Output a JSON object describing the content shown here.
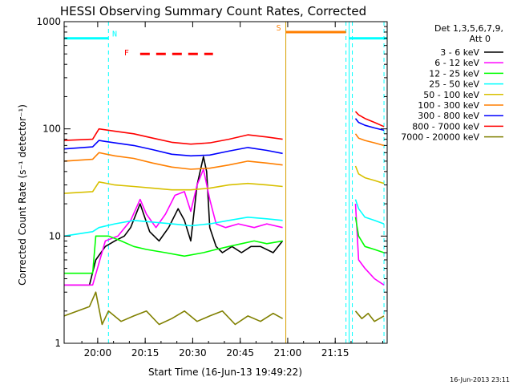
{
  "chart_data": {
    "type": "line",
    "title": "HESSI Observing Summary Count Rates, Corrected",
    "xlabel": "Start Time (16-Jun-13 19:49:22)",
    "ylabel": "Corrected Count Rate (s⁻¹ detector⁻¹)",
    "yscale": "log",
    "ylim": [
      1,
      1000
    ],
    "xlim_minutes_after_start": [
      0,
      102
    ],
    "x_ticks": [
      {
        "label": "20:00",
        "minute": 10.6
      },
      {
        "label": "20:15",
        "minute": 25.6
      },
      {
        "label": "20:30",
        "minute": 40.6
      },
      {
        "label": "20:45",
        "minute": 55.6
      },
      {
        "label": "21:00",
        "minute": 70.6
      },
      {
        "label": "21:15",
        "minute": 85.6
      }
    ],
    "y_ticks": [
      {
        "label": "1",
        "value": 1
      },
      {
        "label": "10",
        "value": 10
      },
      {
        "label": "100",
        "value": 100
      },
      {
        "label": "1000",
        "value": 1000
      }
    ],
    "legend_header": [
      "Det 1,3,5,6,7,9,",
      "Att 0"
    ],
    "legend_placement": "right",
    "series": [
      {
        "name": "3 - 6 keV",
        "color": "#000000",
        "segments": [
          {
            "x": [
              0,
              8,
              10,
              13,
              16,
              19,
              21,
              24,
              27,
              30,
              33,
              36,
              38,
              40,
              42,
              44,
              45,
              46,
              48,
              50,
              53,
              56,
              59,
              62,
              66,
              69
            ],
            "y": [
              3.5,
              3.5,
              6,
              8,
              9,
              10,
              12,
              20,
              11,
              9,
              12,
              18,
              14,
              9,
              30,
              55,
              40,
              12,
              8,
              7,
              8,
              7,
              8,
              8,
              7,
              9
            ]
          }
        ]
      },
      {
        "name": "6 - 12 keV",
        "color": "#ff00ff",
        "segments": [
          {
            "x": [
              0,
              9,
              13,
              17,
              21,
              24,
              26,
              29,
              32,
              35,
              38,
              40,
              42,
              44,
              46,
              48,
              51,
              55,
              60,
              64,
              69
            ],
            "y": [
              3.5,
              3.5,
              9,
              10,
              14,
              22,
              16,
              12,
              16,
              24,
              26,
              17,
              30,
              42,
              22,
              13,
              12,
              13,
              12,
              13,
              12
            ]
          },
          {
            "x": [
              92,
              93,
              95,
              98,
              101
            ],
            "y": [
              20,
              6,
              5,
              4,
              3.5
            ]
          }
        ]
      },
      {
        "name": "12 - 25 keV",
        "color": "#00ff00",
        "segments": [
          {
            "x": [
              0,
              9,
              10,
              14,
              18,
              22,
              26,
              32,
              38,
              44,
              48,
              52,
              56,
              60,
              64,
              69
            ],
            "y": [
              4.5,
              4.5,
              10,
              10,
              9,
              8,
              7.5,
              7,
              6.5,
              7,
              7.5,
              8,
              8.5,
              9,
              8.5,
              9
            ]
          },
          {
            "x": [
              92,
              93,
              95,
              98,
              101
            ],
            "y": [
              15,
              10,
              8,
              7.5,
              7
            ]
          }
        ]
      },
      {
        "name": "25 - 50 keV",
        "color": "#00ffff",
        "segments": [
          {
            "x": [
              0,
              9,
              11,
              16,
              22,
              28,
              34,
              40,
              46,
              52,
              58,
              64,
              69
            ],
            "y": [
              10,
              11,
              12,
              13,
              14,
              13.5,
              13,
              12.5,
              13,
              14,
              15,
              14.5,
              14
            ]
          },
          {
            "x": [
              92,
              93,
              95,
              98,
              101
            ],
            "y": [
              22,
              18,
              15,
              14,
              13
            ]
          }
        ]
      },
      {
        "name": "50 - 100 keV",
        "color": "#d8c000",
        "segments": [
          {
            "x": [
              0,
              9,
              11,
              16,
              22,
              28,
              34,
              40,
              46,
              52,
              58,
              64,
              69
            ],
            "y": [
              25,
              26,
              32,
              30,
              29,
              28,
              27,
              27,
              28,
              30,
              31,
              30,
              29
            ]
          },
          {
            "x": [
              92,
              93,
              95,
              98,
              101
            ],
            "y": [
              45,
              38,
              35,
              33,
              31
            ]
          }
        ]
      },
      {
        "name": "100 - 300 keV",
        "color": "#ff7f00",
        "segments": [
          {
            "x": [
              0,
              9,
              11,
              16,
              22,
              28,
              34,
              40,
              46,
              52,
              58,
              64,
              69
            ],
            "y": [
              50,
              52,
              60,
              56,
              53,
              48,
              44,
              42,
              43,
              46,
              50,
              48,
              46
            ]
          },
          {
            "x": [
              92,
              93,
              95,
              98,
              101
            ],
            "y": [
              90,
              82,
              78,
              74,
              70
            ]
          }
        ]
      },
      {
        "name": "300 - 800 keV",
        "color": "#0000ff",
        "segments": [
          {
            "x": [
              0,
              9,
              11,
              16,
              22,
              28,
              34,
              40,
              46,
              52,
              58,
              64,
              69
            ],
            "y": [
              65,
              68,
              78,
              74,
              70,
              64,
              58,
              56,
              57,
              62,
              67,
              63,
              59
            ]
          },
          {
            "x": [
              92,
              93,
              95,
              98,
              101
            ],
            "y": [
              125,
              115,
              108,
              102,
              97
            ]
          }
        ]
      },
      {
        "name": "800 - 7000 keV",
        "color": "#ff0000",
        "segments": [
          {
            "x": [
              0,
              9,
              11,
              16,
              22,
              28,
              34,
              40,
              46,
              52,
              58,
              64,
              69
            ],
            "y": [
              78,
              80,
              100,
              95,
              90,
              82,
              75,
              72,
              74,
              80,
              88,
              84,
              80
            ]
          },
          {
            "x": [
              92,
              93,
              95,
              98,
              101
            ],
            "y": [
              145,
              135,
              125,
              115,
              105
            ]
          }
        ]
      },
      {
        "name": "7000 - 20000 keV",
        "color": "#808000",
        "segments": [
          {
            "x": [
              0,
              8,
              10,
              12,
              14,
              18,
              22,
              26,
              30,
              34,
              38,
              42,
              46,
              50,
              54,
              58,
              62,
              66,
              69
            ],
            "y": [
              1.8,
              2.2,
              3.0,
              1.5,
              2,
              1.6,
              1.8,
              2.0,
              1.5,
              1.7,
              2.0,
              1.6,
              1.8,
              2.0,
              1.5,
              1.8,
              1.6,
              1.9,
              1.7
            ]
          },
          {
            "x": [
              92,
              94,
              96,
              98,
              101
            ],
            "y": [
              2.0,
              1.7,
              1.9,
              1.6,
              1.8
            ]
          }
        ]
      }
    ],
    "annotations": [
      {
        "label": "N",
        "type": "night",
        "color": "#00ffff",
        "x_start": 0,
        "x_end": 14,
        "level": 700
      },
      {
        "label": "",
        "type": "night",
        "color": "#00ffff",
        "x_start": 90,
        "x_end": 102,
        "level": 700
      },
      {
        "label": "S",
        "type": "SAA",
        "color": "#ff7f00",
        "x_start": 70,
        "x_end": 89,
        "level": 800
      },
      {
        "label": "F",
        "type": "flare",
        "color": "#ff0000",
        "x_start": 24,
        "x_end": 47,
        "level": 500
      }
    ],
    "vertical_markers": [
      {
        "minute": 0,
        "color": "#00ffff",
        "dashed": false
      },
      {
        "minute": 14,
        "color": "#00ffff",
        "dashed": true
      },
      {
        "minute": 70,
        "color": "#d8a000",
        "dashed": false
      },
      {
        "minute": 89,
        "color": "#00ffff",
        "dashed": true
      },
      {
        "minute": 90,
        "color": "#00ffff",
        "dashed": false
      },
      {
        "minute": 91,
        "color": "#00ffff",
        "dashed": true
      },
      {
        "minute": 101,
        "color": "#00ffff",
        "dashed": true
      }
    ]
  },
  "footer_timestamp": "16-Jun-2013 23:11"
}
